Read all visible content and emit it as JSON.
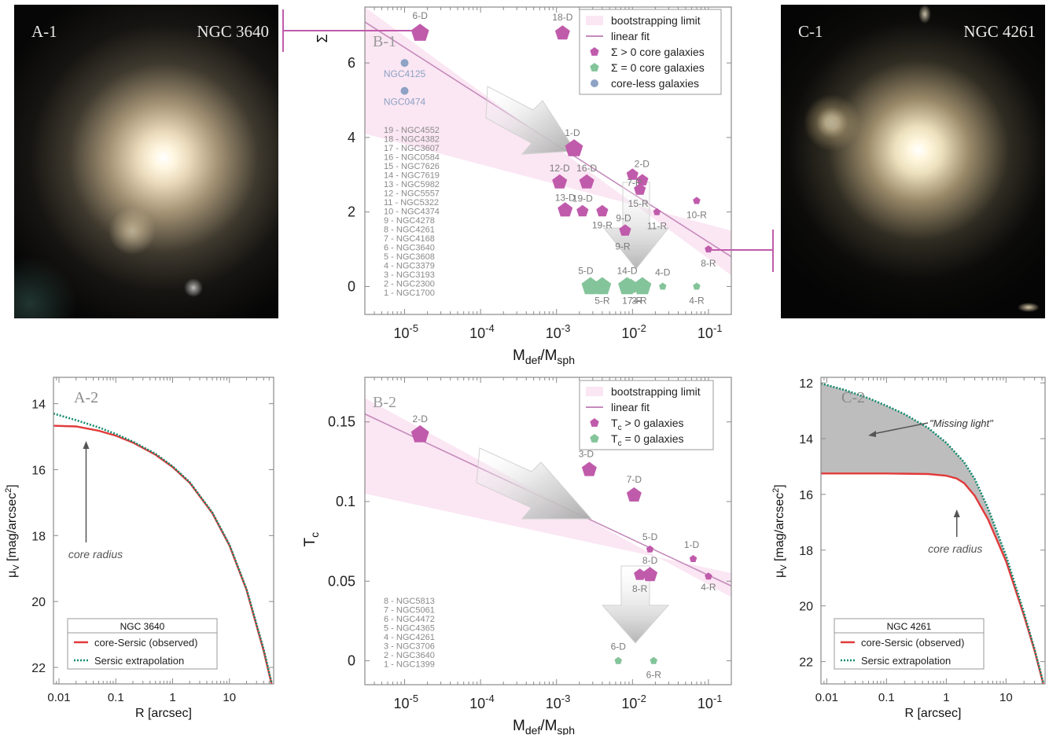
{
  "panels": {
    "a1": {
      "label": "A-1",
      "galaxy": "NGC 3640"
    },
    "c1": {
      "label": "C-1",
      "galaxy": "NGC 4261"
    },
    "a2": {
      "label": "A-2",
      "legend_title": "NGC 3640",
      "annotation": "core radius"
    },
    "b1": {
      "label": "B-1"
    },
    "b2": {
      "label": "B-2"
    },
    "c2": {
      "label": "C-2",
      "legend_title": "NGC 4261",
      "annotation": "core radius",
      "missing_light": "\"Missing light\""
    }
  },
  "colors": {
    "magenta": "#c05bab",
    "green": "#84c49a",
    "blue": "#8da2c4",
    "fit": "#c58bbb",
    "band": "#fbe6f3",
    "observed": "#e23a3a",
    "sersic": "#138a6e",
    "axis": "#8a8a8a",
    "label": "#7a7a7a"
  },
  "chart_data": [
    {
      "type": "scatter",
      "id": "b1",
      "xlabel": "M_def/M_sph",
      "ylabel": "Σ",
      "xscale": "log",
      "xlim": [
        3e-06,
        0.2
      ],
      "ylim": [
        -0.75,
        7.5
      ],
      "xticks": [
        "10-5",
        "10-4",
        "10-3",
        "10-2",
        "10-1"
      ],
      "yticks": [
        0,
        2,
        4,
        6
      ],
      "legend": [
        "bootstrapping limit",
        "linear fit",
        "Σ > 0 core galaxies",
        "Σ = 0 core galaxies",
        "core-less galaxies"
      ],
      "linear_fit": [
        [
          3e-06,
          7.1
        ],
        [
          0.2,
          0.8
        ]
      ],
      "band_upper": [
        [
          3e-06,
          7.5
        ],
        [
          0.2,
          0.3
        ]
      ],
      "band_lower": [
        [
          3e-06,
          4.1
        ],
        [
          0.2,
          1.5
        ]
      ],
      "points": [
        {
          "label": "6-D",
          "x": 1.6e-05,
          "y": 6.8,
          "size": "big",
          "group": "core"
        },
        {
          "label": "18-D",
          "x": 0.0012,
          "y": 6.8,
          "size": "mid",
          "group": "core"
        },
        {
          "label": "NGC4125",
          "x": 1e-05,
          "y": 6.0,
          "size": "dot",
          "group": "coreless"
        },
        {
          "label": "NGC0474",
          "x": 1e-05,
          "y": 5.25,
          "size": "dot",
          "group": "coreless"
        },
        {
          "label": "1-D",
          "x": 0.0017,
          "y": 3.7,
          "size": "big",
          "group": "core"
        },
        {
          "label": "12-D",
          "x": 0.0011,
          "y": 2.8,
          "size": "mid",
          "group": "core"
        },
        {
          "label": "16-D",
          "x": 0.0025,
          "y": 2.8,
          "size": "mid",
          "group": "core"
        },
        {
          "label": "2-D",
          "x": 0.01,
          "y": 3.0,
          "size": "small",
          "group": "core"
        },
        {
          "label": "7-R",
          "x": 0.0135,
          "y": 2.85,
          "size": "small",
          "group": "core"
        },
        {
          "label": "15-R",
          "x": 0.0125,
          "y": 2.6,
          "size": "small",
          "group": "core"
        },
        {
          "label": "13-D",
          "x": 0.0013,
          "y": 2.05,
          "size": "mid",
          "group": "core"
        },
        {
          "label": "19-D",
          "x": 0.0022,
          "y": 2.02,
          "size": "small",
          "group": "core"
        },
        {
          "label": "19-R",
          "x": 0.004,
          "y": 2.02,
          "size": "small",
          "group": "core"
        },
        {
          "label": "11-R",
          "x": 0.021,
          "y": 2.0,
          "size": "tiny",
          "group": "core"
        },
        {
          "label": "10-R",
          "x": 0.07,
          "y": 2.3,
          "size": "tiny",
          "group": "core"
        },
        {
          "label": "9-D",
          "x": 0.008,
          "y": 1.5,
          "size": "small",
          "group": "core"
        },
        {
          "label": "9-R",
          "x": 0.0078,
          "y": 1.45,
          "size": "tiny",
          "group": "core"
        },
        {
          "label": "8-R",
          "x": 0.1,
          "y": 1.0,
          "size": "tiny",
          "group": "core"
        },
        {
          "label": "5-D",
          "x": 0.0028,
          "y": 0.0,
          "size": "big",
          "group": "zero"
        },
        {
          "label": "5-R",
          "x": 0.004,
          "y": 0.0,
          "size": "big",
          "group": "zero"
        },
        {
          "label": "14-D",
          "x": 0.0085,
          "y": 0.0,
          "size": "big",
          "group": "zero"
        },
        {
          "label": "17-R",
          "x": 0.0095,
          "y": 0.0,
          "size": "mid",
          "group": "zero"
        },
        {
          "label": "3-R",
          "x": 0.0135,
          "y": 0.0,
          "size": "big",
          "group": "zero"
        },
        {
          "label": "4-D",
          "x": 0.025,
          "y": 0.0,
          "size": "tiny",
          "group": "zero"
        },
        {
          "label": "4-R",
          "x": 0.07,
          "y": 0.0,
          "size": "tiny",
          "group": "zero"
        }
      ],
      "galaxy_list": [
        "19 - NGC4552",
        "18 - NGC4382",
        "17 - NGC3607",
        "16 - NGC0584",
        "15 - NGC7626",
        "14 - NGC7619",
        "13 - NGC5982",
        "12 - NGC5557",
        "11 - NGC5322",
        "10 - NGC4374",
        "9 - NGC4278",
        "8 - NGC4261",
        "7 - NGC4168",
        "6 - NGC3640",
        "5 - NGC3608",
        "4 - NGC3379",
        "3 - NGC3193",
        "2 - NGC2300",
        "1 - NGC1700"
      ]
    },
    {
      "type": "scatter",
      "id": "b2",
      "xlabel": "M_def/M_sph",
      "ylabel": "T_c",
      "xscale": "log",
      "xlim": [
        3e-06,
        0.2
      ],
      "ylim": [
        -0.015,
        0.178
      ],
      "xticks": [
        "10-5",
        "10-4",
        "10-3",
        "10-2",
        "10-1"
      ],
      "yticks": [
        0,
        0.05,
        0.1,
        0.15
      ],
      "legend": [
        "bootstrapping limit",
        "linear fit",
        "T_c > 0 galaxies",
        "T_c = 0 galaxies"
      ],
      "linear_fit": [
        [
          3e-06,
          0.155
        ],
        [
          0.2,
          0.047
        ]
      ],
      "band_upper": [
        [
          3e-06,
          0.165
        ],
        [
          0.2,
          0.04
        ]
      ],
      "band_lower": [
        [
          3e-06,
          0.105
        ],
        [
          0.2,
          0.055
        ]
      ],
      "points": [
        {
          "label": "2-D",
          "x": 1.6e-05,
          "y": 0.142,
          "size": "big",
          "group": "core"
        },
        {
          "label": "3-D",
          "x": 0.0027,
          "y": 0.12,
          "size": "mid",
          "group": "core"
        },
        {
          "label": "7-D",
          "x": 0.0105,
          "y": 0.104,
          "size": "mid",
          "group": "core"
        },
        {
          "label": "5-D",
          "x": 0.017,
          "y": 0.07,
          "size": "tiny",
          "group": "core"
        },
        {
          "label": "1-D",
          "x": 0.063,
          "y": 0.064,
          "size": "tiny",
          "group": "core"
        },
        {
          "label": "8-D",
          "x": 0.017,
          "y": 0.054,
          "size": "mid",
          "group": "core"
        },
        {
          "label": "8-R",
          "x": 0.0125,
          "y": 0.054,
          "size": "small",
          "group": "core"
        },
        {
          "label": "4-R",
          "x": 0.1,
          "y": 0.053,
          "size": "tiny",
          "group": "core"
        },
        {
          "label": "6-D",
          "x": 0.0065,
          "y": 0.0,
          "size": "tiny",
          "group": "zero"
        },
        {
          "label": "6-R",
          "x": 0.019,
          "y": 0.0,
          "size": "tiny",
          "group": "zero"
        }
      ],
      "galaxy_list": [
        "8 - NGC5813",
        "7 - NGC5061",
        "6 - NGC4472",
        "5 - NGC4365",
        "4 - NGC4261",
        "3 - NGC3706",
        "2 - NGC3640",
        "1 - NGC1399"
      ]
    },
    {
      "type": "line",
      "id": "a2",
      "xlabel": "R [arcsec]",
      "ylabel": "μV [mag/arcsec2]",
      "xscale": "log",
      "xlim": [
        0.008,
        60
      ],
      "ylim": [
        22.5,
        13.2
      ],
      "xticks": [
        0.01,
        0.1,
        1,
        10
      ],
      "yticks": [
        14,
        16,
        18,
        20,
        22
      ],
      "legend": [
        "core-Sersic (observed)",
        "Sersic extrapolation"
      ],
      "series": [
        {
          "name": "core-Sersic (observed)",
          "x": [
            0.008,
            0.02,
            0.05,
            0.1,
            0.2,
            0.5,
            1,
            2,
            5,
            10,
            20,
            40,
            55
          ],
          "y": [
            14.67,
            14.69,
            14.82,
            14.97,
            15.18,
            15.55,
            15.92,
            16.4,
            17.32,
            18.3,
            19.65,
            21.5,
            22.5
          ]
        },
        {
          "name": "Sersic extrapolation",
          "x": [
            0.008,
            0.02,
            0.05,
            0.1,
            0.2,
            0.5,
            1,
            2,
            5,
            10,
            20,
            40,
            55
          ],
          "y": [
            14.3,
            14.5,
            14.72,
            14.92,
            15.15,
            15.52,
            15.9,
            16.38,
            17.3,
            18.28,
            19.62,
            21.45,
            22.45
          ]
        }
      ],
      "annotation_x": 0.03
    },
    {
      "type": "line",
      "id": "c2",
      "xlabel": "R [arcsec]",
      "ylabel": "μV [mag/arcsec2]",
      "xscale": "log",
      "xlim": [
        0.008,
        45
      ],
      "ylim": [
        22.8,
        11.8
      ],
      "xticks": [
        0.01,
        0.1,
        1,
        10
      ],
      "yticks": [
        12,
        14,
        16,
        18,
        20,
        22
      ],
      "legend": [
        "core-Sersic (observed)",
        "Sersic extrapolation"
      ],
      "series": [
        {
          "name": "core-Sersic (observed)",
          "x": [
            0.008,
            0.1,
            0.5,
            1,
            1.5,
            2,
            3,
            5,
            10,
            20,
            30,
            42
          ],
          "y": [
            15.25,
            15.25,
            15.27,
            15.33,
            15.43,
            15.6,
            16.05,
            16.9,
            18.4,
            20.35,
            21.6,
            22.8
          ]
        },
        {
          "name": "Sersic extrapolation",
          "x": [
            0.008,
            0.02,
            0.05,
            0.1,
            0.2,
            0.5,
            1,
            2,
            3,
            5,
            10,
            20,
            30,
            42
          ],
          "y": [
            12.02,
            12.25,
            12.55,
            12.82,
            13.12,
            13.62,
            14.15,
            14.85,
            15.45,
            16.5,
            18.2,
            20.25,
            21.55,
            22.75
          ]
        }
      ],
      "annotation_x": 1.5
    }
  ]
}
